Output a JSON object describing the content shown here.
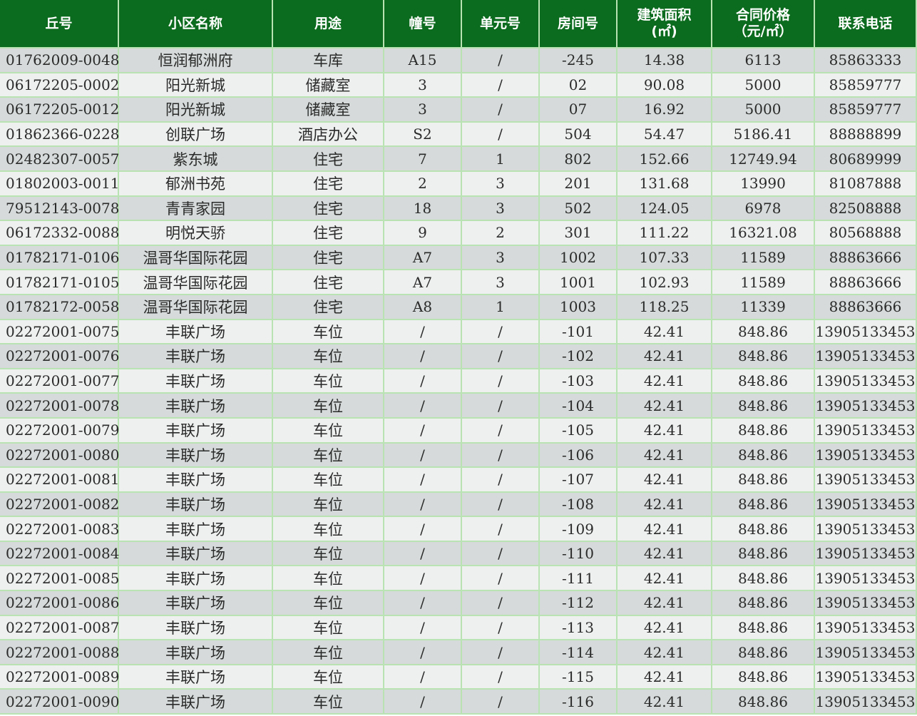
{
  "colors": {
    "header_bg": "#0b6b1e",
    "header_text": "#ffffff",
    "row_dark": "#d6dada",
    "row_light": "#eef0ef",
    "grid": "#b9e3b3"
  },
  "headers": [
    "丘号",
    "小区名称",
    "用途",
    "幢号",
    "单元号",
    "房间号",
    "建筑面积\n(㎡)",
    "合同价格\n（元/㎡）",
    "联系电话"
  ],
  "rows": [
    [
      "01762009-0048",
      "恒润郁洲府",
      "车库",
      "A15",
      "/",
      "-245",
      "14.38",
      "6113",
      "85863333"
    ],
    [
      "06172205-0002",
      "阳光新城",
      "储藏室",
      "3",
      "/",
      "02",
      "90.08",
      "5000",
      "85859777"
    ],
    [
      "06172205-0012",
      "阳光新城",
      "储藏室",
      "3",
      "/",
      "07",
      "16.92",
      "5000",
      "85859777"
    ],
    [
      "01862366-0228",
      "创联广场",
      "酒店办公",
      "S2",
      "/",
      "504",
      "54.47",
      "5186.41",
      "88888899"
    ],
    [
      "02482307-0057",
      "紫东城",
      "住宅",
      "7",
      "1",
      "802",
      "152.66",
      "12749.94",
      "80689999"
    ],
    [
      "01802003-0011",
      "郁洲书苑",
      "住宅",
      "2",
      "3",
      "201",
      "131.68",
      "13990",
      "81087888"
    ],
    [
      "79512143-0078",
      "青青家园",
      "住宅",
      "18",
      "3",
      "502",
      "124.05",
      "6978",
      "82508888"
    ],
    [
      "06172332-0088",
      "明悦天骄",
      "住宅",
      "9",
      "2",
      "301",
      "111.22",
      "16321.08",
      "80568888"
    ],
    [
      "01782171-0106",
      "温哥华国际花园",
      "住宅",
      "A7",
      "3",
      "1002",
      "107.33",
      "11589",
      "88863666"
    ],
    [
      "01782171-0105",
      "温哥华国际花园",
      "住宅",
      "A7",
      "3",
      "1001",
      "102.93",
      "11589",
      "88863666"
    ],
    [
      "01782172-0058",
      "温哥华国际花园",
      "住宅",
      "A8",
      "1",
      "1003",
      "118.25",
      "11339",
      "88863666"
    ],
    [
      "02272001-0075",
      "丰联广场",
      "车位",
      "/",
      "/",
      "-101",
      "42.41",
      "848.86",
      "13905133453"
    ],
    [
      "02272001-0076",
      "丰联广场",
      "车位",
      "/",
      "/",
      "-102",
      "42.41",
      "848.86",
      "13905133453"
    ],
    [
      "02272001-0077",
      "丰联广场",
      "车位",
      "/",
      "/",
      "-103",
      "42.41",
      "848.86",
      "13905133453"
    ],
    [
      "02272001-0078",
      "丰联广场",
      "车位",
      "/",
      "/",
      "-104",
      "42.41",
      "848.86",
      "13905133453"
    ],
    [
      "02272001-0079",
      "丰联广场",
      "车位",
      "/",
      "/",
      "-105",
      "42.41",
      "848.86",
      "13905133453"
    ],
    [
      "02272001-0080",
      "丰联广场",
      "车位",
      "/",
      "/",
      "-106",
      "42.41",
      "848.86",
      "13905133453"
    ],
    [
      "02272001-0081",
      "丰联广场",
      "车位",
      "/",
      "/",
      "-107",
      "42.41",
      "848.86",
      "13905133453"
    ],
    [
      "02272001-0082",
      "丰联广场",
      "车位",
      "/",
      "/",
      "-108",
      "42.41",
      "848.86",
      "13905133453"
    ],
    [
      "02272001-0083",
      "丰联广场",
      "车位",
      "/",
      "/",
      "-109",
      "42.41",
      "848.86",
      "13905133453"
    ],
    [
      "02272001-0084",
      "丰联广场",
      "车位",
      "/",
      "/",
      "-110",
      "42.41",
      "848.86",
      "13905133453"
    ],
    [
      "02272001-0085",
      "丰联广场",
      "车位",
      "/",
      "/",
      "-111",
      "42.41",
      "848.86",
      "13905133453"
    ],
    [
      "02272001-0086",
      "丰联广场",
      "车位",
      "/",
      "/",
      "-112",
      "42.41",
      "848.86",
      "13905133453"
    ],
    [
      "02272001-0087",
      "丰联广场",
      "车位",
      "/",
      "/",
      "-113",
      "42.41",
      "848.86",
      "13905133453"
    ],
    [
      "02272001-0088",
      "丰联广场",
      "车位",
      "/",
      "/",
      "-114",
      "42.41",
      "848.86",
      "13905133453"
    ],
    [
      "02272001-0089",
      "丰联广场",
      "车位",
      "/",
      "/",
      "-115",
      "42.41",
      "848.86",
      "13905133453"
    ],
    [
      "02272001-0090",
      "丰联广场",
      "车位",
      "/",
      "/",
      "-116",
      "42.41",
      "848.86",
      "13905133453"
    ]
  ]
}
